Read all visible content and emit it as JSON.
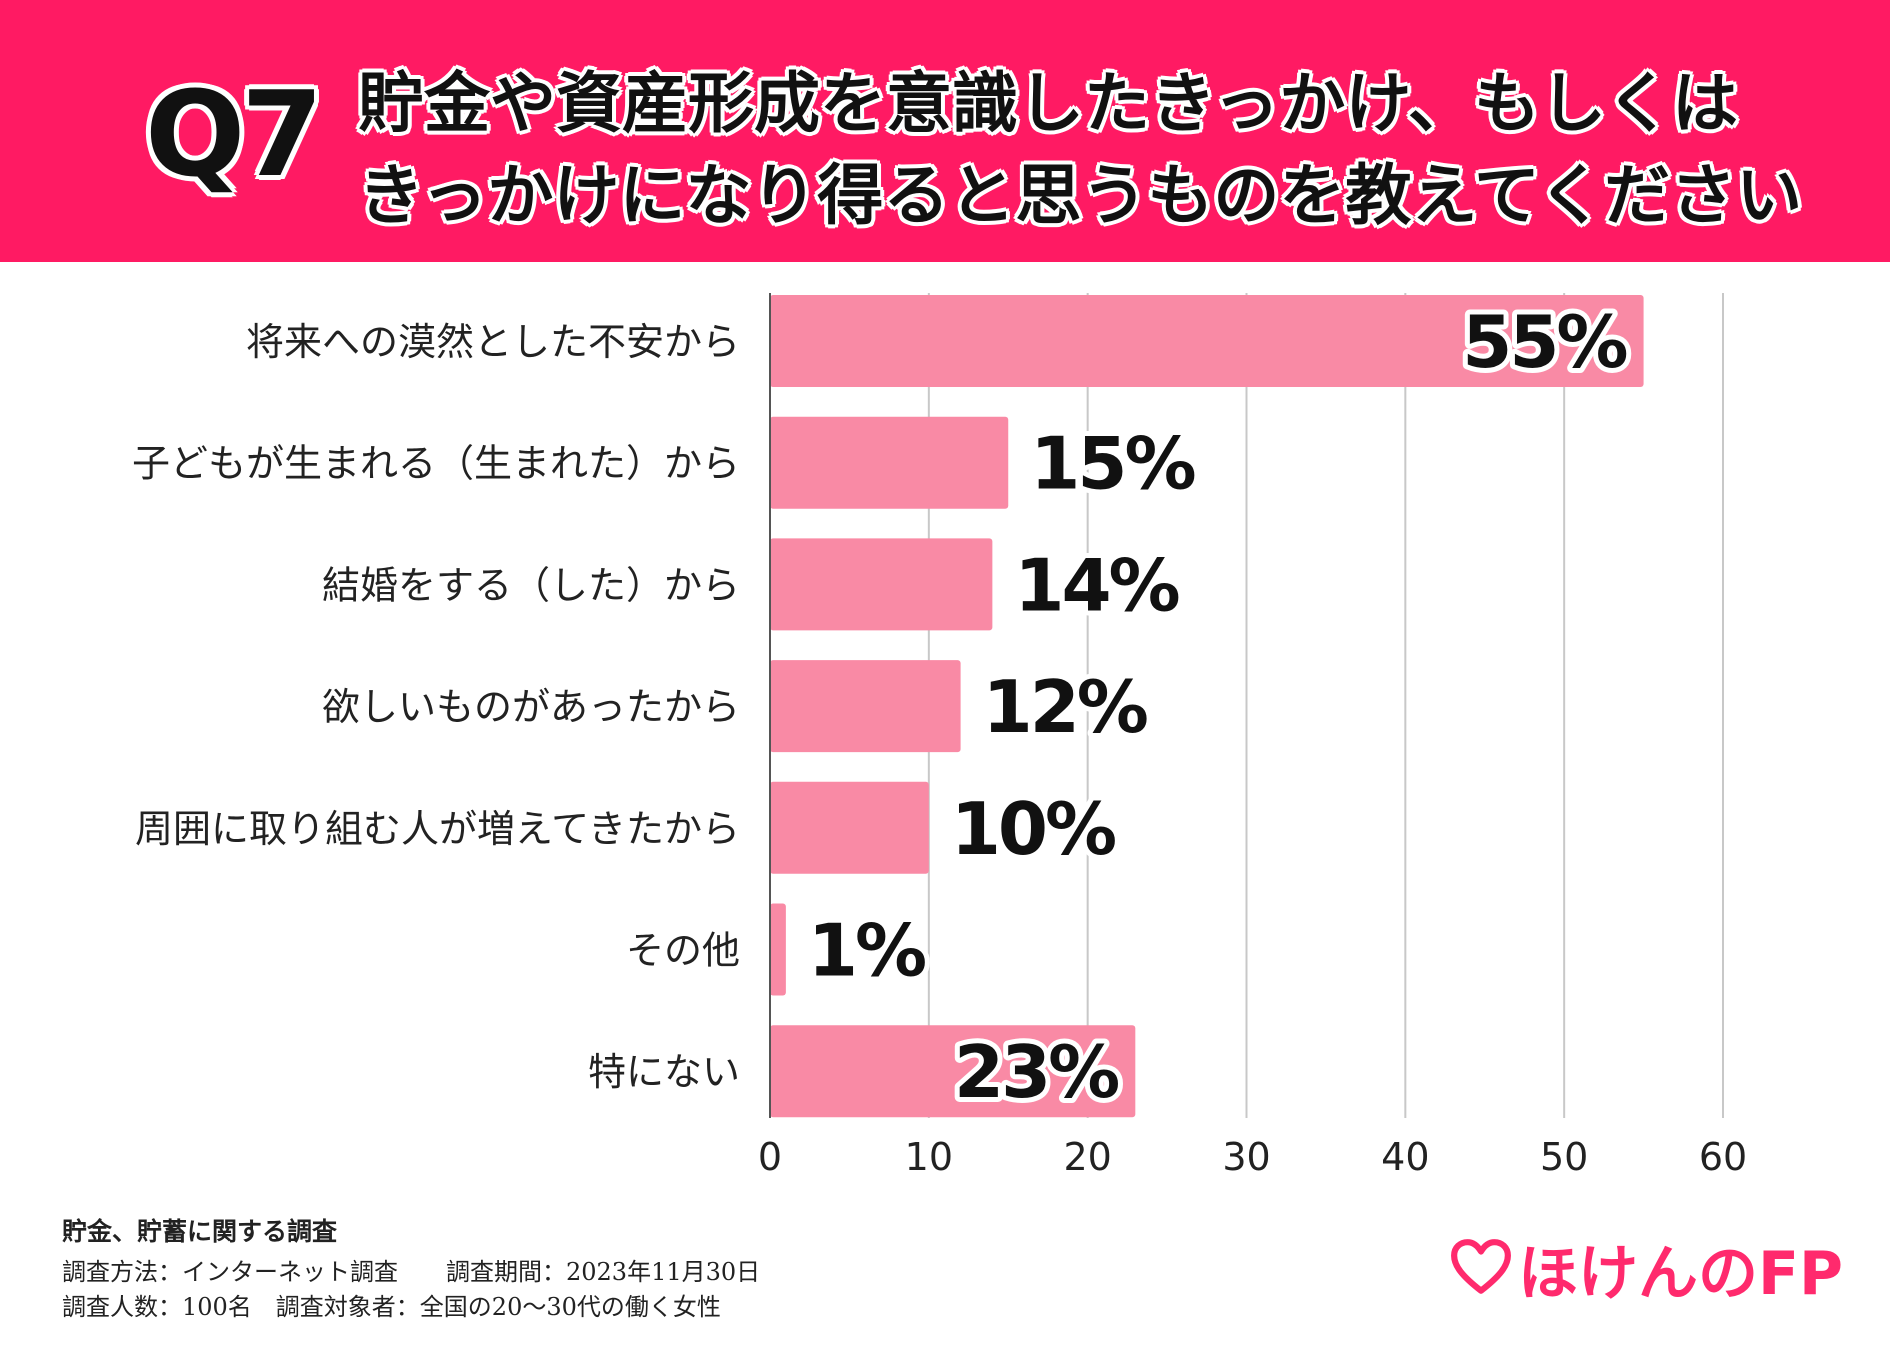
{
  "header": {
    "qnum": "Q7",
    "line1": "貯金や資産形成を意識したきっかけ、もしくは",
    "line2": "きっかけになり得ると思うものを教えてください"
  },
  "colors": {
    "header_bg": "#ff1a63",
    "bar": "#f98aa5",
    "grid": "#c8c8c8",
    "logo": "#ff2a6d"
  },
  "chart_data": {
    "type": "bar",
    "orientation": "horizontal",
    "categories": [
      "将来への漠然とした不安から",
      "子どもが生まれる（生まれた）から",
      "結婚をする（した）から",
      "欲しいものがあったから",
      "周囲に取り組む人が増えてきたから",
      "その他",
      "特にない"
    ],
    "values": [
      55,
      15,
      14,
      12,
      10,
      1,
      23
    ],
    "value_labels": [
      "55%",
      "15%",
      "14%",
      "12%",
      "10%",
      "1%",
      "23%"
    ],
    "xlim": [
      0,
      60
    ],
    "xticks": [
      0,
      10,
      20,
      30,
      40,
      50,
      60
    ],
    "grid": "vertical"
  },
  "footer": {
    "title": "貯金、貯蓄に関する調査",
    "line1": "調査方法：インターネット調査　　調査期間：2023年11月30日",
    "line2": "調査人数：100名　調査対象者：全国の20～30代の働く女性"
  },
  "logo": {
    "icon": "heart-outline-icon",
    "text": "ほけんのFP"
  }
}
